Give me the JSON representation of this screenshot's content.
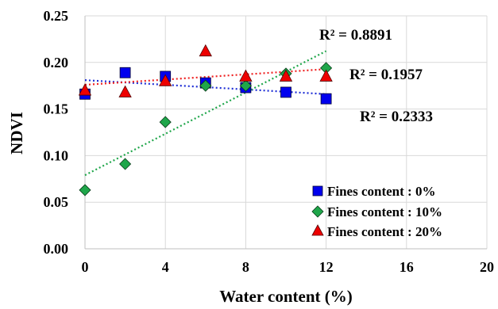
{
  "chart_data": {
    "type": "scatter",
    "xlabel": "Water content (%)",
    "ylabel": "NDVI",
    "xlim": [
      0,
      20
    ],
    "ylim": [
      0,
      0.25
    ],
    "x_ticks": [
      "0",
      "4",
      "8",
      "12",
      "16",
      "20"
    ],
    "y_ticks": [
      "0.00",
      "0.05",
      "0.10",
      "0.15",
      "0.20",
      "0.25"
    ],
    "grid": true,
    "legend_position": "bottom-right",
    "series": [
      {
        "name": "Fines content : 0%",
        "marker": "square",
        "color": "#0000ee",
        "trend_color": "#1f2fd6",
        "x": [
          0,
          2,
          4,
          6,
          8,
          10,
          12
        ],
        "y": [
          0.166,
          0.189,
          0.185,
          0.178,
          0.173,
          0.168,
          0.161
        ],
        "trend": [
          0.181,
          -0.00125
        ]
      },
      {
        "name": "Fines content : 10%",
        "marker": "diamond",
        "color": "#1fa64a",
        "trend_color": "#1fa64a",
        "x": [
          0,
          2,
          4,
          6,
          8,
          10,
          12
        ],
        "y": [
          0.063,
          0.091,
          0.136,
          0.175,
          0.175,
          0.188,
          0.194
        ],
        "trend": [
          0.079,
          0.0111
        ]
      },
      {
        "name": "Fines content : 20%",
        "marker": "triangle",
        "color": "#ee0000",
        "trend_color": "#ee2222",
        "x": [
          0,
          2,
          4,
          6,
          8,
          10,
          12
        ],
        "y": [
          0.17,
          0.168,
          0.18,
          0.212,
          0.185,
          0.185,
          0.185
        ],
        "trend": [
          0.176,
          0.0014
        ]
      }
    ],
    "annotations": [
      "R² = 0.8891",
      "R² = 0.1957",
      "R² = 0.2333"
    ]
  }
}
